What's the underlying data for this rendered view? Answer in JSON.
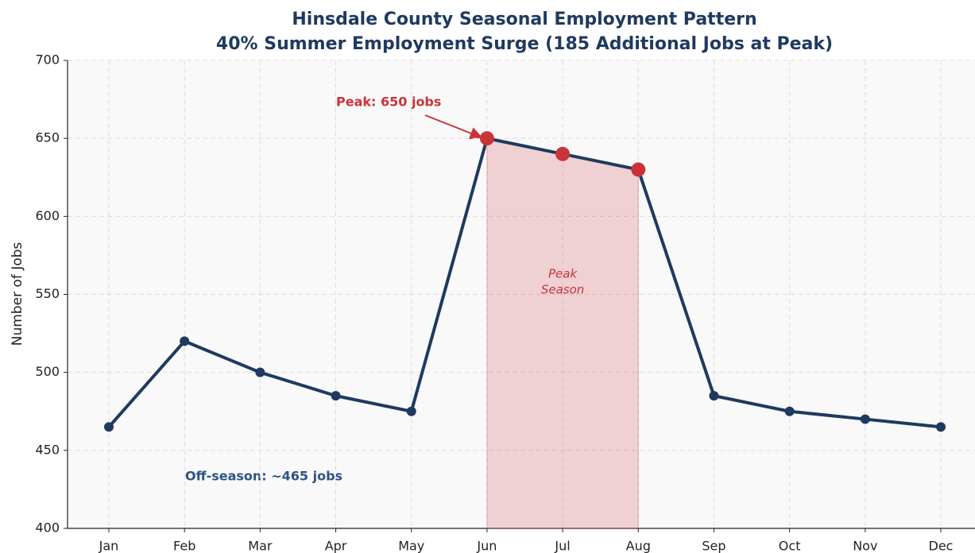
{
  "chart_data": {
    "type": "line",
    "title": "Hinsdale County Seasonal Employment Pattern",
    "subtitle": "40% Summer Employment Surge (185 Additional Jobs at Peak)",
    "y_label": "Number of Jobs",
    "categories": [
      "Jan",
      "Feb",
      "Mar",
      "Apr",
      "May",
      "Jun",
      "Jul",
      "Aug",
      "Sep",
      "Oct",
      "Nov",
      "Dec"
    ],
    "series": [
      {
        "name": "Jobs",
        "color": "#1f3a5f",
        "values": [
          465,
          520,
          500,
          485,
          475,
          650,
          640,
          630,
          485,
          475,
          470,
          465
        ]
      }
    ],
    "ylim": [
      400,
      700
    ],
    "yticks": [
      400,
      450,
      500,
      550,
      600,
      650,
      700
    ],
    "grid": true,
    "shade_range": [
      "Jun",
      "Aug"
    ],
    "shade_color": "#c9343a",
    "annotations": {
      "peak": "Peak: 650 jobs",
      "season": [
        "Peak",
        "Season"
      ],
      "offseason": "Off-season: ~465 jobs"
    }
  }
}
